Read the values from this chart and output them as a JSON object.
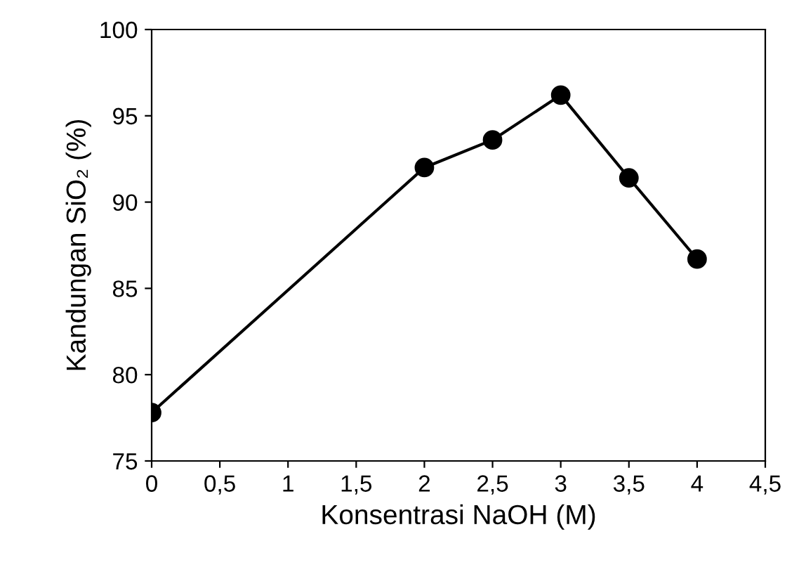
{
  "chart_data": {
    "type": "line",
    "xlabel": "Konsentrasi NaOH (M)",
    "ylabel": "Kandungan SiO₂ (%)",
    "x": [
      0,
      2,
      2.5,
      3,
      3.5,
      4
    ],
    "series": [
      {
        "color": "#000000",
        "values": [
          77.8,
          92.0,
          93.6,
          96.2,
          91.4,
          86.7
        ]
      }
    ],
    "xlim": [
      0,
      4.5
    ],
    "ylim": [
      75,
      100
    ],
    "xticks": [
      0,
      {
        "value": 0.5,
        "label": "0,5"
      },
      1,
      {
        "value": 1.5,
        "label": "1,5"
      },
      2,
      {
        "value": 2.5,
        "label": "2,5"
      },
      3,
      {
        "value": 3.5,
        "label": "3,5"
      },
      4,
      {
        "value": 4.5,
        "label": "4,5"
      }
    ],
    "yticks": [
      75,
      80,
      85,
      90,
      95,
      100
    ],
    "marker": "circle",
    "line_style": "solid",
    "grid": false
  }
}
